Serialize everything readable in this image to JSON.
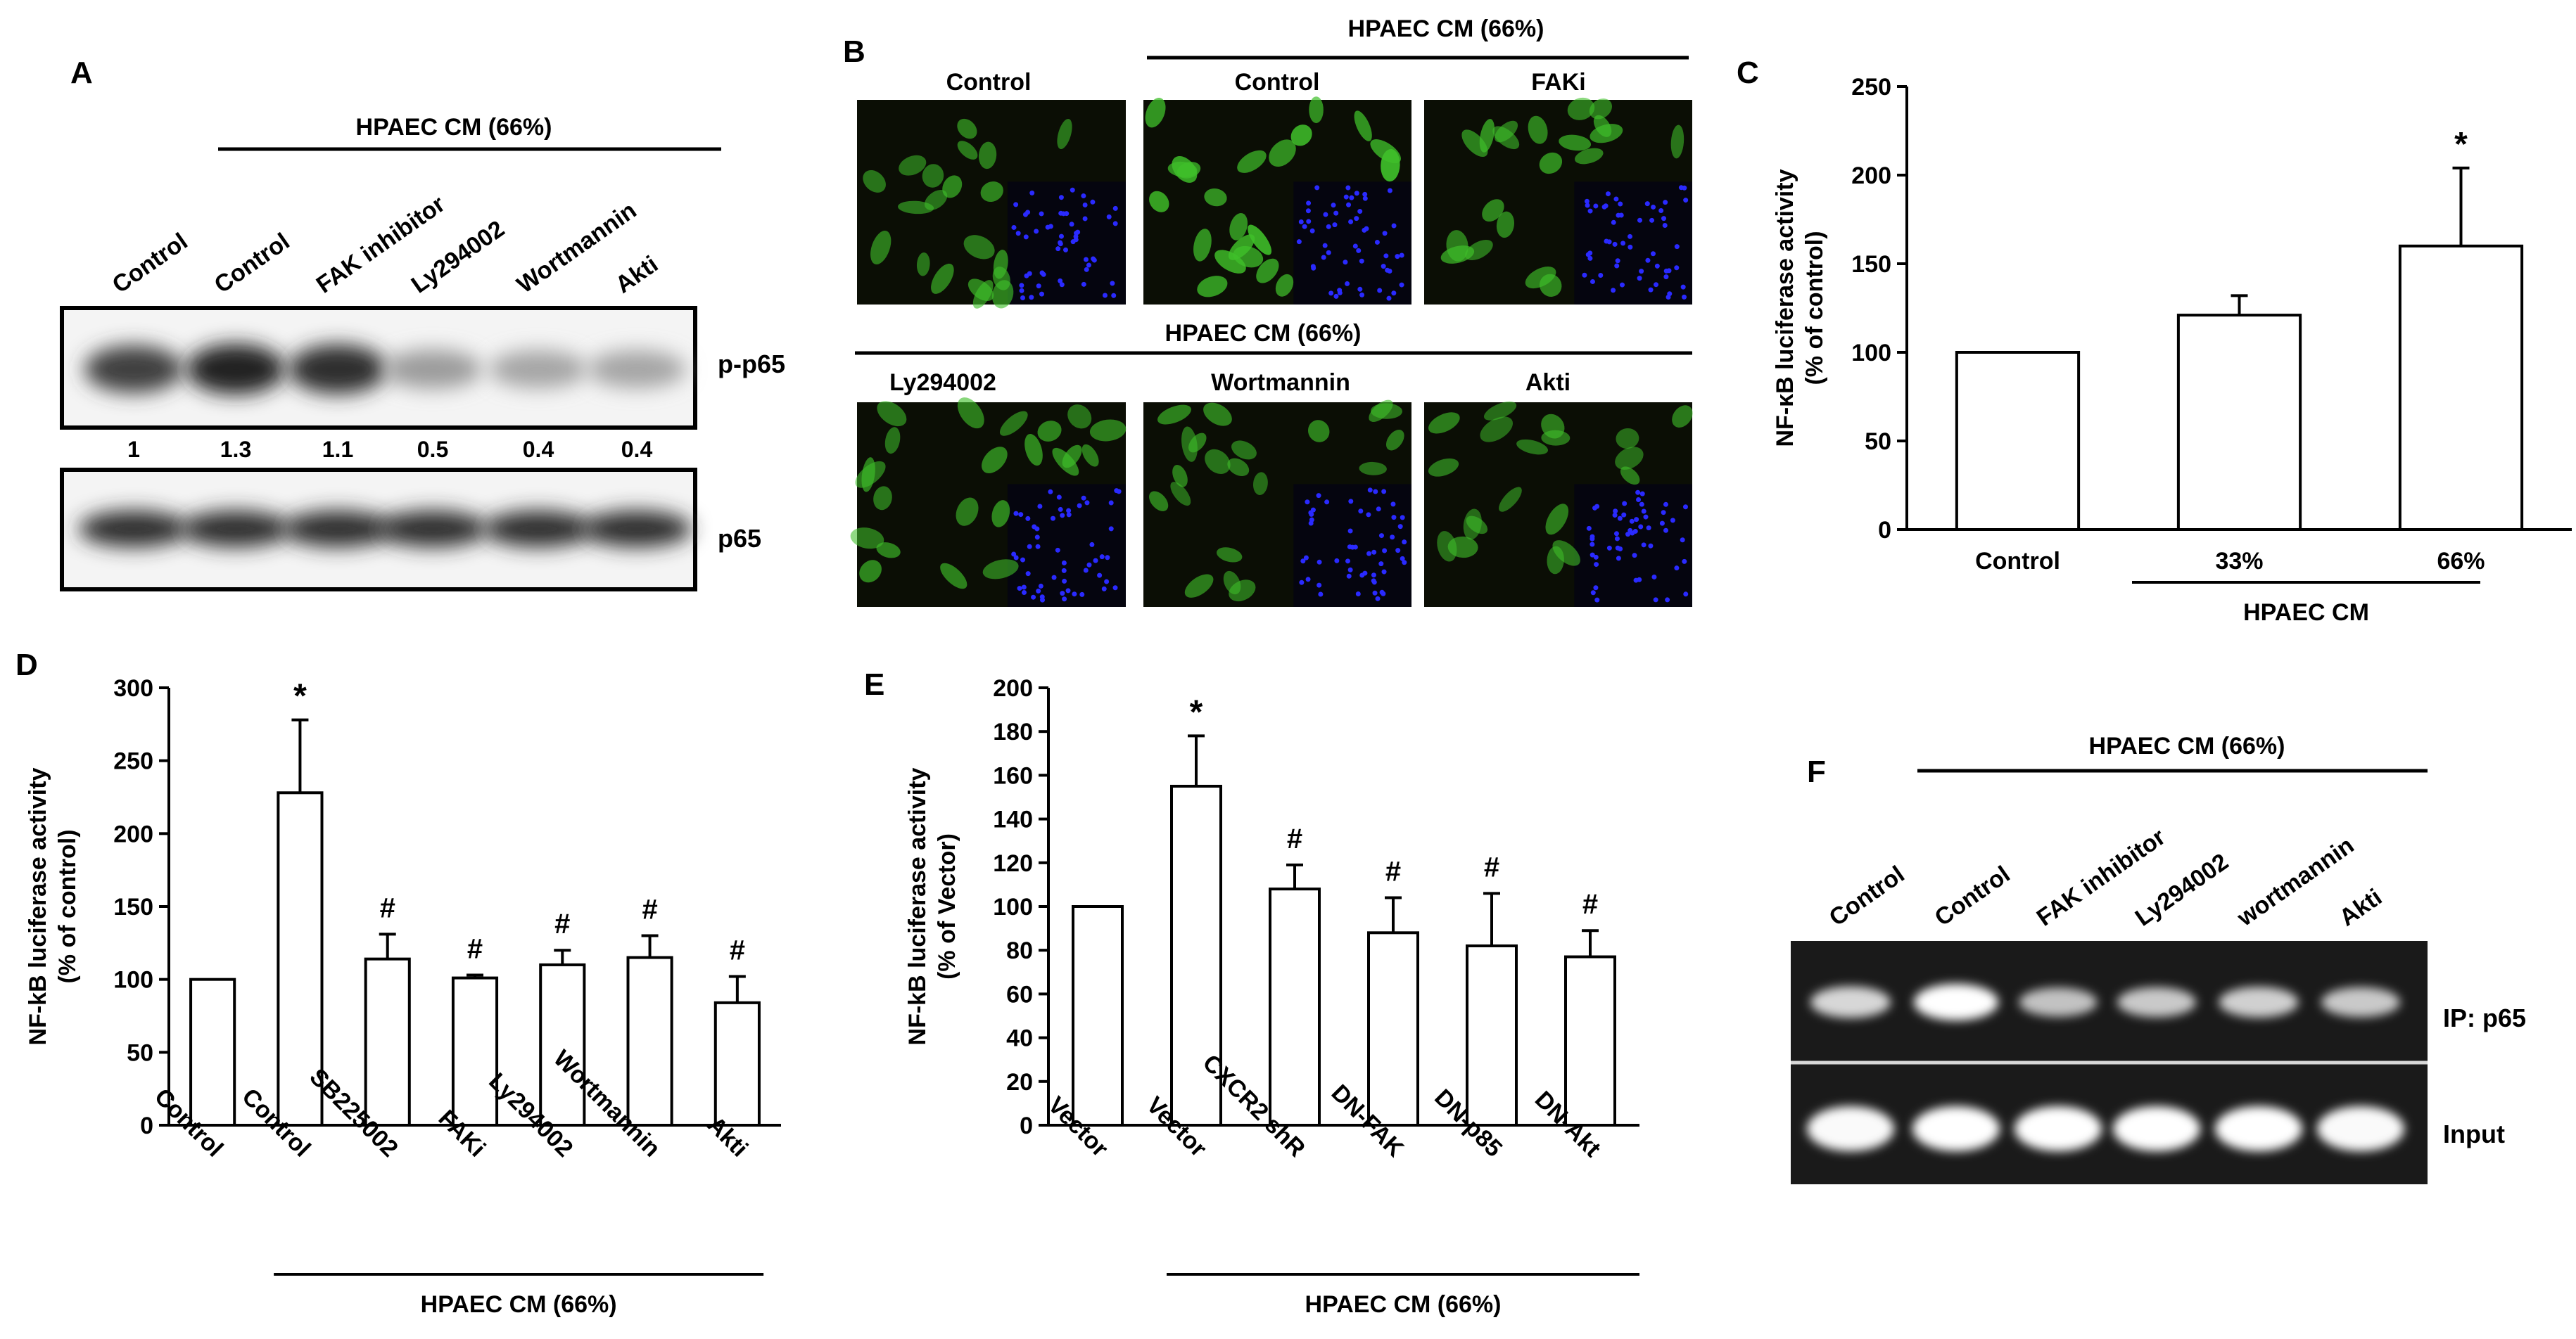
{
  "panelA": {
    "letter": "A",
    "group_label": "HPAEC CM (66%)",
    "lanes": [
      "Control",
      "Control",
      "FAK inhibitor",
      "Ly294002",
      "Wortmannin",
      "Akti"
    ],
    "top_band_label": "p-p65",
    "bottom_band_label": "p65",
    "quant": [
      "1",
      "1.3",
      "1.1",
      "0.5",
      "0.4",
      "0.4"
    ],
    "band_intensity_top": [
      0.85,
      1.0,
      0.95,
      0.4,
      0.35,
      0.35
    ],
    "band_intensity_bottom": [
      0.95,
      0.95,
      0.95,
      0.95,
      0.95,
      0.95
    ]
  },
  "panelB": {
    "letter": "B",
    "group_label_top": "HPAEC CM (66%)",
    "group_label_mid": "HPAEC CM (66%)",
    "top_labels": [
      "Control",
      "Control",
      "FAKi"
    ],
    "bottom_labels": [
      "Ly294002",
      "Wortmannin",
      "Akti"
    ],
    "fluorescence_level": [
      0.55,
      1.0,
      0.6,
      0.55,
      0.5,
      0.45
    ],
    "colors": {
      "background": "#0b0e05",
      "cell": "#3fbf2a",
      "nucleus": "#2a2aff"
    }
  },
  "panelF": {
    "letter": "F",
    "group_label": "HPAEC CM (66%)",
    "lanes": [
      "Control",
      "Control",
      "FAK inhibitor",
      "Ly294002",
      "wortmannin",
      "Akti"
    ],
    "row_labels": [
      "IP: p65",
      "Input"
    ],
    "band_intensity_ip": [
      0.7,
      1.0,
      0.55,
      0.6,
      0.65,
      0.6
    ],
    "band_intensity_input": [
      0.95,
      1.0,
      1.0,
      1.0,
      1.0,
      0.95
    ]
  },
  "chart_data": [
    {
      "panel": "C",
      "type": "bar",
      "ylabel_line1": "NF-κB luciferase activity",
      "ylabel_line2": "(% of control)",
      "categories": [
        "Control",
        "33%",
        "66%"
      ],
      "values": [
        100,
        121,
        160
      ],
      "errors": [
        0,
        11,
        44
      ],
      "significance": [
        "",
        "",
        "*"
      ],
      "ylim": [
        0,
        250
      ],
      "yticks": [
        0,
        50,
        100,
        150,
        200,
        250
      ],
      "group_label": "HPAEC CM"
    },
    {
      "panel": "D",
      "type": "bar",
      "ylabel_line1": "NF-kB luciferase activity",
      "ylabel_line2": "(% of control)",
      "categories": [
        "Control",
        "Control",
        "SB225002",
        "FAKi",
        "Ly294002",
        "Wortmannin",
        "Akti"
      ],
      "values": [
        100,
        228,
        114,
        101,
        110,
        115,
        84
      ],
      "errors": [
        0,
        50,
        17,
        2,
        10,
        15,
        18
      ],
      "significance": [
        "",
        "*",
        "#",
        "#",
        "#",
        "#",
        "#"
      ],
      "ylim": [
        0,
        300
      ],
      "yticks": [
        0,
        50,
        100,
        150,
        200,
        250,
        300
      ],
      "group_label": "HPAEC CM (66%)"
    },
    {
      "panel": "E",
      "type": "bar",
      "ylabel_line1": "NF-kB luciferase activity",
      "ylabel_line2": "(% of Vector)",
      "categories": [
        "Vector",
        "Vector",
        "CXCR2 shR",
        "DN-FAK",
        "DN-p85",
        "DN-Akt"
      ],
      "values": [
        100,
        155,
        108,
        88,
        82,
        77
      ],
      "errors": [
        0,
        23,
        11,
        16,
        24,
        12
      ],
      "significance": [
        "",
        "*",
        "#",
        "#",
        "#",
        "#"
      ],
      "ylim": [
        0,
        200
      ],
      "yticks": [
        0,
        20,
        40,
        60,
        80,
        100,
        120,
        140,
        160,
        180,
        200
      ],
      "group_label": "HPAEC CM (66%)"
    }
  ]
}
